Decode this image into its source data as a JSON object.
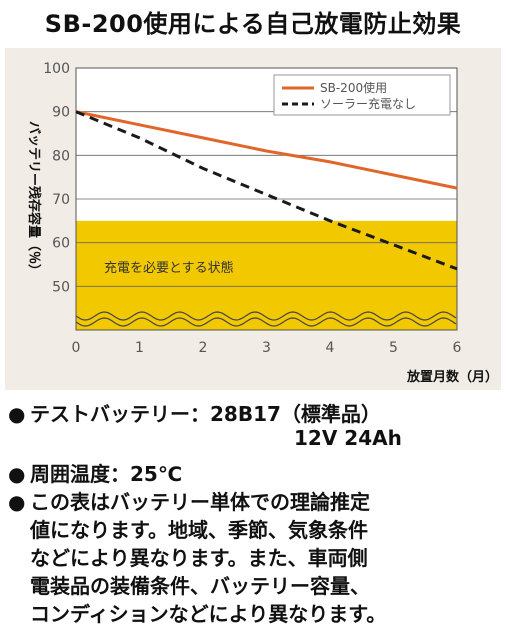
{
  "title": "SB-200使用による自己放電防止効果",
  "chart_data": {
    "type": "line",
    "x": [
      0,
      1,
      2,
      3,
      4,
      5,
      6
    ],
    "xlim": [
      0,
      6
    ],
    "ylim": [
      40,
      100
    ],
    "x_ticks": [
      0,
      1,
      2,
      3,
      4,
      5,
      6
    ],
    "y_ticks": [
      50,
      60,
      70,
      80,
      90,
      100
    ],
    "xlabel": "放置月数（月）",
    "ylabel": "バッテリー残存容量（％）",
    "grid": true,
    "legend_position": "top-right",
    "series": [
      {
        "name": "SB-200使用",
        "values": [
          90,
          87,
          84,
          81,
          78.5,
          75.5,
          72.5
        ],
        "color": "#e0662a",
        "style": "solid"
      },
      {
        "name": "ソーラー充電なし",
        "values": [
          90,
          84,
          77,
          71,
          65,
          59.5,
          54
        ],
        "color": "#1a1a1a",
        "style": "dashed"
      }
    ],
    "zone": {
      "label": "充電を必要とする状態",
      "from": 40,
      "to": 65,
      "color": "#f2c800"
    },
    "axis_break": true
  },
  "notes": {
    "battery_label": "テストバッテリー：",
    "battery_value_1": "28B17（標準品）",
    "battery_value_2": "12V 24Ah",
    "temperature": "周囲温度：25℃",
    "disclaimer_lines": [
      "この表はバッテリー単体での理論推定",
      "値になります。地域、季節、気象条件",
      "などにより異なります。また、車両側",
      "電装品の装備条件、バッテリー容量、",
      "コンディションなどにより異なります。"
    ],
    "bullet_glyph": "●"
  }
}
